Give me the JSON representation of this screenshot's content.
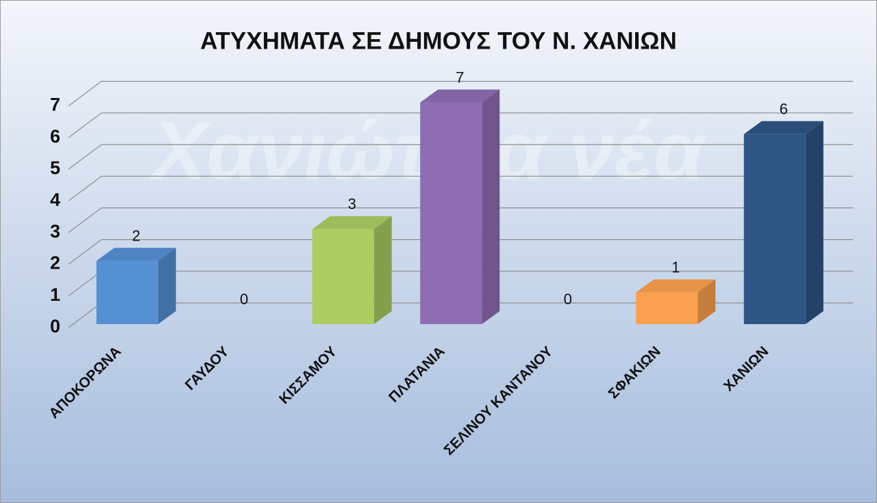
{
  "chart_data": {
    "type": "bar3d",
    "title": "ΑΤΥΧΗΜΑΤΑ ΣΕ ΔΗΜΟΥΣ ΤΟΥ Ν. ΧΑΝΙΩΝ",
    "watermark": "Χανιώτικα νέα",
    "categories": [
      "ΑΠΟΚΟΡΩΝΑ",
      "ΓΑΥΔΟΥ",
      "ΚΙΣΣΑΜΟΥ",
      "ΠΛΑΤΑΝΙΑ",
      "ΣΕΛΙΝΟΥ ΚΑΝΤΑΝΟΥ",
      "ΣΦΑΚΙΩΝ",
      "ΧΑΝΙΩΝ"
    ],
    "values": [
      2,
      0,
      3,
      7,
      0,
      1,
      6
    ],
    "colors": [
      "#5590d4",
      null,
      "#abcd62",
      "#8e6db3",
      null,
      "#fba04e",
      "#2e5584"
    ],
    "ylim": [
      0,
      7
    ],
    "yticks": [
      0,
      1,
      2,
      3,
      4,
      5,
      6,
      7
    ],
    "grid": true
  }
}
